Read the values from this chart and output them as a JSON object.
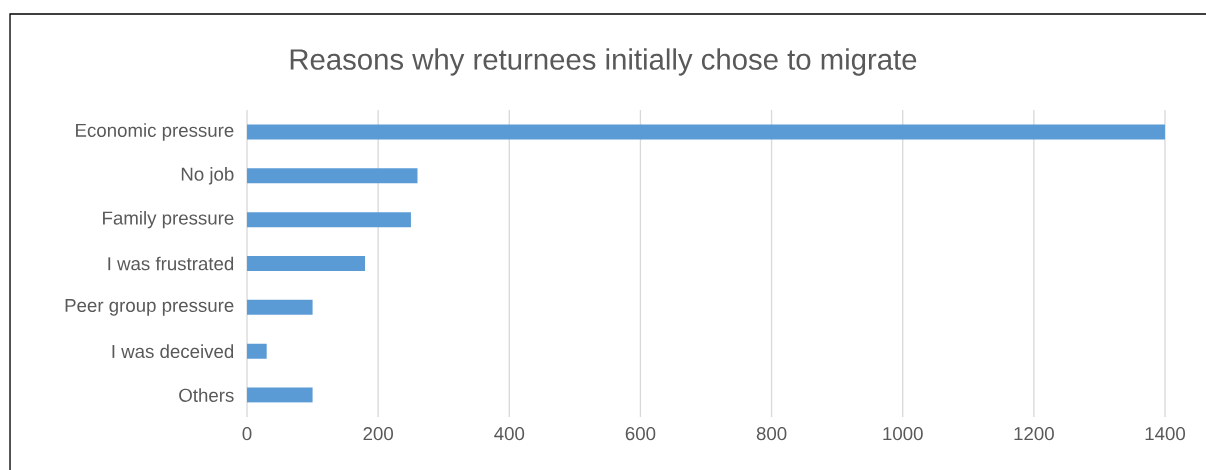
{
  "chart_data": {
    "type": "bar",
    "orientation": "horizontal",
    "title": "Reasons why returnees initially chose to migrate",
    "categories": [
      "Economic pressure",
      "No job",
      "Family pressure",
      "I was frustrated",
      "Peer group pressure",
      "I was deceived",
      "Others"
    ],
    "values": [
      1400,
      260,
      250,
      180,
      100,
      30,
      100
    ],
    "color": "#5b9bd5",
    "xlim": [
      0,
      1400
    ],
    "xticks": [
      0,
      200,
      400,
      600,
      800,
      1000,
      1200,
      1400
    ],
    "grid": "x"
  }
}
